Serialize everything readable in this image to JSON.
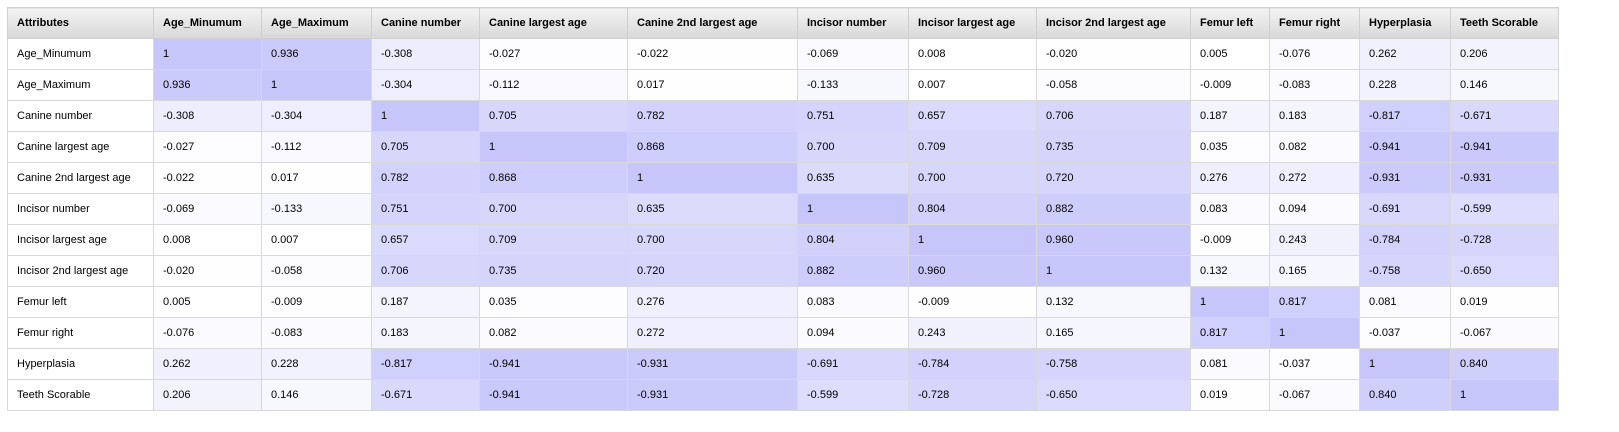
{
  "table": {
    "corner_label": "Attributes",
    "attributes": [
      "Age_Minumum",
      "Age_Maximum",
      "Canine number",
      "Canine largest age",
      "Canine 2nd largest age",
      "Incisor number",
      "Incisor largest age",
      "Incisor 2nd largest age",
      "Femur left",
      "Femur right",
      "Hyperplasia",
      "Teeth Scorable"
    ],
    "rows": [
      [
        "1",
        "0.936",
        "-0.308",
        "-0.027",
        "-0.022",
        "-0.069",
        "0.008",
        "-0.020",
        "0.005",
        "-0.076",
        "0.262",
        "0.206"
      ],
      [
        "0.936",
        "1",
        "-0.304",
        "-0.112",
        "0.017",
        "-0.133",
        "0.007",
        "-0.058",
        "-0.009",
        "-0.083",
        "0.228",
        "0.146"
      ],
      [
        "-0.308",
        "-0.304",
        "1",
        "0.705",
        "0.782",
        "0.751",
        "0.657",
        "0.706",
        "0.187",
        "0.183",
        "-0.817",
        "-0.671"
      ],
      [
        "-0.027",
        "-0.112",
        "0.705",
        "1",
        "0.868",
        "0.700",
        "0.709",
        "0.735",
        "0.035",
        "0.082",
        "-0.941",
        "-0.941"
      ],
      [
        "-0.022",
        "0.017",
        "0.782",
        "0.868",
        "1",
        "0.635",
        "0.700",
        "0.720",
        "0.276",
        "0.272",
        "-0.931",
        "-0.931"
      ],
      [
        "-0.069",
        "-0.133",
        "0.751",
        "0.700",
        "0.635",
        "1",
        "0.804",
        "0.882",
        "0.083",
        "0.094",
        "-0.691",
        "-0.599"
      ],
      [
        "0.008",
        "0.007",
        "0.657",
        "0.709",
        "0.700",
        "0.804",
        "1",
        "0.960",
        "-0.009",
        "0.243",
        "-0.784",
        "-0.728"
      ],
      [
        "-0.020",
        "-0.058",
        "0.706",
        "0.735",
        "0.720",
        "0.882",
        "0.960",
        "1",
        "0.132",
        "0.165",
        "-0.758",
        "-0.650"
      ],
      [
        "0.005",
        "-0.009",
        "0.187",
        "0.035",
        "0.276",
        "0.083",
        "-0.009",
        "0.132",
        "1",
        "0.817",
        "0.081",
        "0.019"
      ],
      [
        "-0.076",
        "-0.083",
        "0.183",
        "0.082",
        "0.272",
        "0.094",
        "0.243",
        "0.165",
        "0.817",
        "1",
        "-0.037",
        "-0.067"
      ],
      [
        "0.262",
        "0.228",
        "-0.817",
        "-0.941",
        "-0.931",
        "-0.691",
        "-0.784",
        "-0.758",
        "0.081",
        "-0.037",
        "1",
        "0.840"
      ],
      [
        "0.206",
        "0.146",
        "-0.671",
        "-0.941",
        "-0.931",
        "-0.599",
        "-0.728",
        "-0.650",
        "0.019",
        "-0.067",
        "0.840",
        "1"
      ]
    ]
  },
  "colors": {
    "heat_max": "#c6c6fb",
    "heat_min": "#ffffff",
    "header_top": "#f3f3f3",
    "header_bottom": "#d8d8d8",
    "grid_line": "#d9d9d9"
  }
}
